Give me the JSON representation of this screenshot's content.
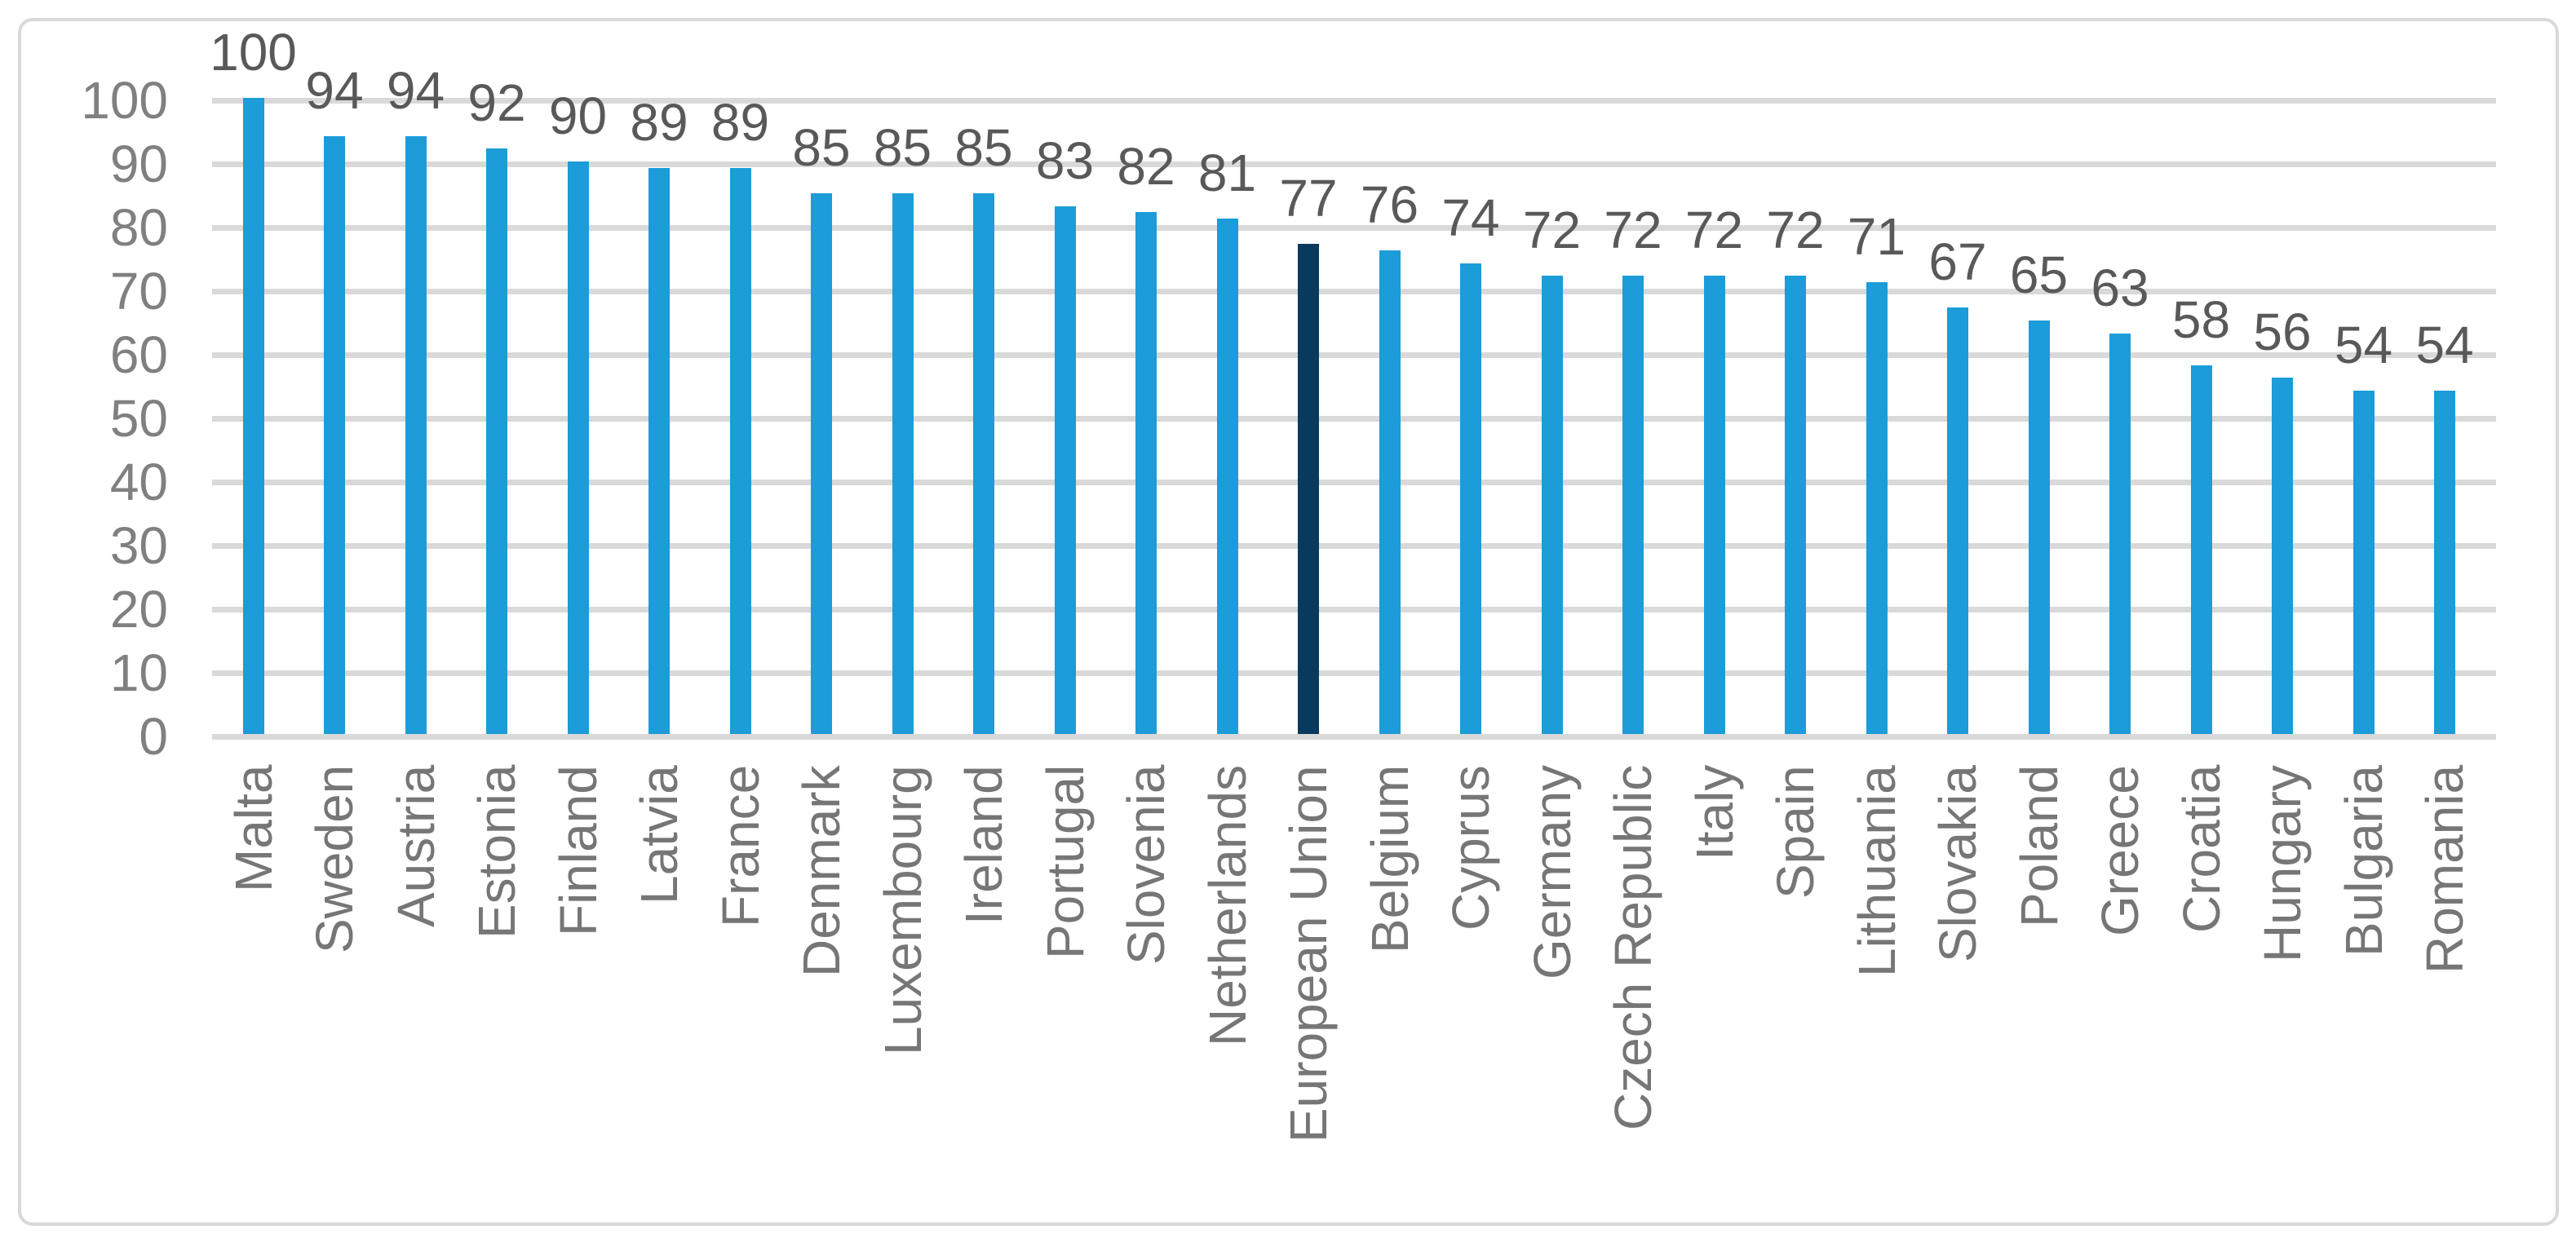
{
  "chart_data": {
    "type": "bar",
    "title": "",
    "categories": [
      "Malta",
      "Sweden",
      "Austria",
      "Estonia",
      "Finland",
      "Latvia",
      "France",
      "Denmark",
      "Luxembourg",
      "Ireland",
      "Portugal",
      "Slovenia",
      "Netherlands",
      "European Union",
      "Belgium",
      "Cyprus",
      "Germany",
      "Czech Republic",
      "Italy",
      "Spain",
      "Lithuania",
      "Slovakia",
      "Poland",
      "Greece",
      "Croatia",
      "Hungary",
      "Bulgaria",
      "Romania"
    ],
    "values": [
      100,
      94,
      94,
      92,
      90,
      89,
      89,
      85,
      85,
      85,
      83,
      82,
      81,
      77,
      76,
      74,
      72,
      72,
      72,
      72,
      71,
      67,
      65,
      63,
      58,
      56,
      54,
      54
    ],
    "value_labels": [
      "100",
      "94",
      "94",
      "92",
      "90",
      "89",
      "89",
      "85",
      "85",
      "85",
      "83",
      "82",
      "81",
      "77",
      "76",
      "74",
      "72",
      "72",
      "72",
      "72",
      "71",
      "67",
      "65",
      "63",
      "58",
      "56",
      "54",
      "54"
    ],
    "highlighted_category": "European Union",
    "highlight_index": 13,
    "xlabel": "",
    "ylabel": "",
    "ylim": [
      0,
      100
    ],
    "yticks": [
      "0",
      "10",
      "20",
      "30",
      "40",
      "50",
      "60",
      "70",
      "80",
      "90",
      "100"
    ],
    "grid": true,
    "legend_position": "none",
    "colors": {
      "bar": "#1C9CD8",
      "bar_highlight": "#083A60",
      "gridline": "#D9D9D9",
      "frame_border": "#D9D9D9",
      "tick_text": "#808080",
      "category_text": "#767676",
      "value_text": "#595959",
      "background": "#FFFFFF"
    }
  }
}
